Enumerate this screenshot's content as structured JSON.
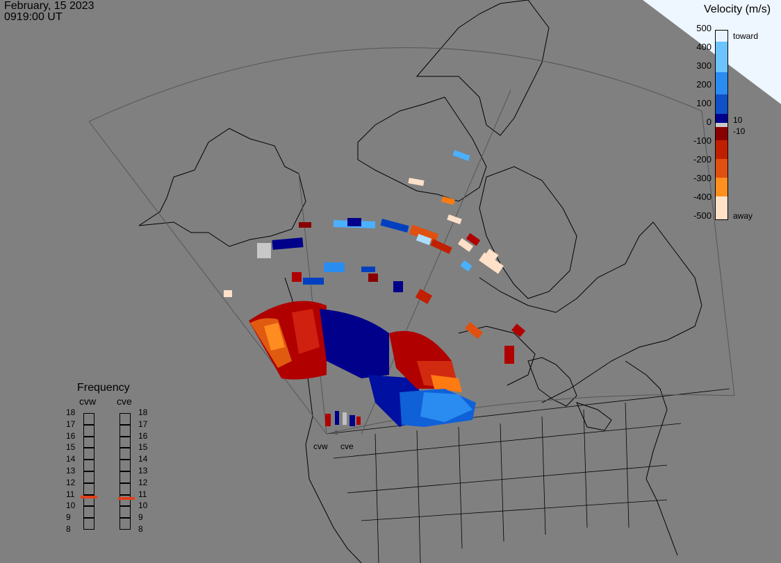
{
  "header": {
    "date": "February, 15 2023",
    "time": "0919:00 UT"
  },
  "legend": {
    "title": "Velocity (m/s)",
    "ticks": [
      "500",
      "400",
      "300",
      "200",
      "100",
      "0",
      "-100",
      "-200",
      "-300",
      "-400",
      "-500"
    ],
    "side_labels": {
      "toward": "toward",
      "ten": "10",
      "minus_ten": "-10",
      "away": "away"
    },
    "colors": {
      "toward_light": "#e8f4ff",
      "toward_mid": "#2a8cf0",
      "toward_dark": "#00008a",
      "zero": "#c8c8c8",
      "away_dark": "#8a0000",
      "away_mid": "#e05010",
      "away_light": "#ffe0c8"
    }
  },
  "frequency": {
    "title": "Frequency",
    "columns": [
      "cvw",
      "cve"
    ],
    "scale": [
      "18",
      "17",
      "16",
      "15",
      "14",
      "13",
      "12",
      "11",
      "10",
      "9",
      "8"
    ],
    "cvw_value_mhz": 10.8,
    "cve_value_mhz": 10.7,
    "marker_color": "#e0401c"
  },
  "sites": {
    "west": "cvw",
    "east": "cve"
  }
}
